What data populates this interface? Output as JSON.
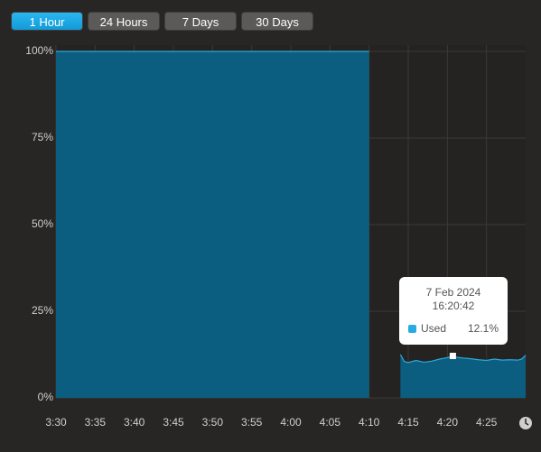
{
  "buttons": [
    "1 Hour",
    "24 Hours",
    "7 Days",
    "30 Days"
  ],
  "chart_data": {
    "type": "area",
    "x": [
      210,
      250,
      252,
      254,
      254.5,
      255,
      256,
      257,
      258,
      259,
      260,
      260.7,
      261,
      262,
      263,
      264,
      265,
      266,
      267,
      268,
      269,
      269.5,
      270
    ],
    "series": [
      {
        "name": "Used",
        "color": "#0b5e80",
        "values": [
          100,
          100,
          null,
          12.5,
          10.5,
          10.2,
          10.8,
          10.3,
          10.6,
          11.2,
          11.6,
          12.1,
          11.8,
          11.5,
          11.3,
          11.0,
          10.8,
          11.2,
          10.9,
          11.0,
          10.9,
          11.2,
          12.3
        ]
      }
    ],
    "xlim": [
      210,
      270
    ],
    "xticks": [
      {
        "value": 210,
        "label": "3:30"
      },
      {
        "value": 215,
        "label": "3:35"
      },
      {
        "value": 220,
        "label": "3:40"
      },
      {
        "value": 225,
        "label": "3:45"
      },
      {
        "value": 230,
        "label": "3:50"
      },
      {
        "value": 235,
        "label": "3:55"
      },
      {
        "value": 240,
        "label": "4:00"
      },
      {
        "value": 245,
        "label": "4:05"
      },
      {
        "value": 250,
        "label": "4:10"
      },
      {
        "value": 255,
        "label": "4:15"
      },
      {
        "value": 260,
        "label": "4:20"
      },
      {
        "value": 265,
        "label": "4:25"
      }
    ],
    "ylim": [
      0,
      100
    ],
    "yticks": [
      {
        "value": 0,
        "label": "0%"
      },
      {
        "value": 25,
        "label": "25%"
      },
      {
        "value": 50,
        "label": "50%"
      },
      {
        "value": 75,
        "label": "75%"
      },
      {
        "value": 100,
        "label": "100%"
      }
    ],
    "grid": true,
    "tooltip": {
      "date": "7 Feb 2024",
      "time": "16:20:42",
      "value": "12.1%",
      "point": 11
    }
  }
}
